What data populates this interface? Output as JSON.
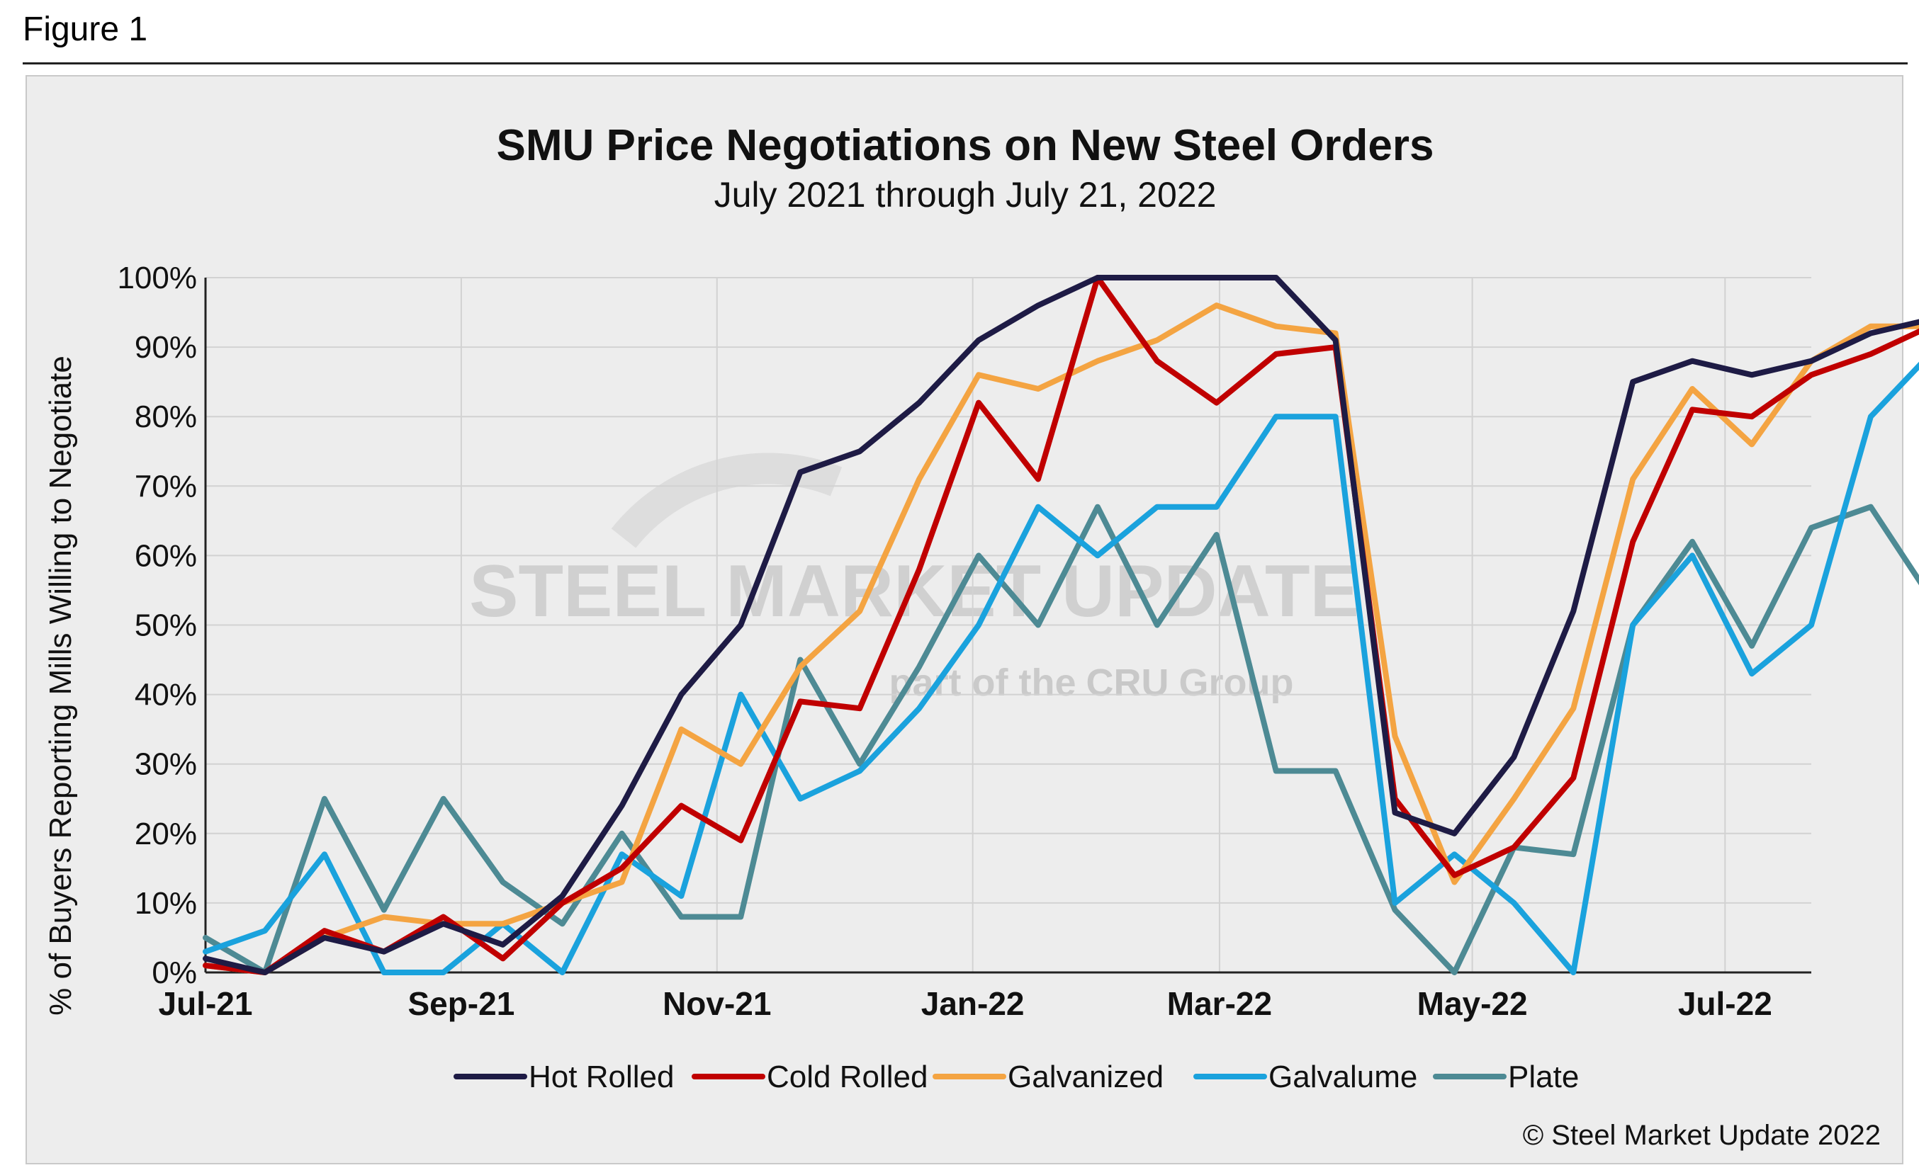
{
  "figure_label": "Figure 1",
  "credit": "© Steel Market Update 2022",
  "watermark": {
    "main": "STEEL MARKET UPDATE",
    "sub_before": "part of the",
    "sub_mark": "CRU",
    "sub_after": "Group"
  },
  "colors": {
    "hot_rolled": "#1e1b45",
    "cold_rolled": "#c00000",
    "galvanized": "#f4a442",
    "galvalume": "#1aa2dd",
    "plate": "#4d8a94"
  },
  "chart_data": {
    "type": "line",
    "title": "SMU Price Negotiations on New Steel Orders",
    "subtitle": "July 2021 through July 21, 2022",
    "xlabel": "",
    "ylabel": "% of Buyers Reporting Mills Willing to Negotiate",
    "ylim": [
      0,
      100
    ],
    "y_ticks": [
      "0%",
      "10%",
      "20%",
      "30%",
      "40%",
      "50%",
      "60%",
      "70%",
      "80%",
      "90%",
      "100%"
    ],
    "y_tick_values": [
      0,
      10,
      20,
      30,
      40,
      50,
      60,
      70,
      80,
      90,
      100
    ],
    "x_ticks": [
      "Jul-21",
      "Sep-21",
      "Nov-21",
      "Jan-22",
      "Mar-22",
      "May-22",
      "Jul-22"
    ],
    "x_tick_index": [
      0,
      4.3,
      8.6,
      12.9,
      17.05,
      21.3,
      25.55
    ],
    "x_index_max": 27,
    "grid": true,
    "legend_position": "bottom",
    "series": [
      {
        "name": "Hot Rolled",
        "key": "hot_rolled",
        "values": [
          2,
          0,
          5,
          3,
          7,
          4,
          11,
          24,
          40,
          50,
          72,
          75,
          82,
          91,
          96,
          100,
          100,
          100,
          100,
          91,
          23,
          20,
          31,
          52,
          85,
          88,
          86,
          88,
          92,
          94
        ]
      },
      {
        "name": "Cold Rolled",
        "key": "cold_rolled",
        "values": [
          1,
          0,
          6,
          3,
          8,
          2,
          10,
          15,
          24,
          19,
          39,
          38,
          58,
          82,
          71,
          100,
          88,
          82,
          89,
          90,
          25,
          14,
          18,
          28,
          62,
          81,
          80,
          86,
          89,
          93
        ]
      },
      {
        "name": "Galvanized",
        "key": "galvanized",
        "values": [
          1,
          0,
          5,
          8,
          7,
          7,
          10,
          13,
          35,
          30,
          44,
          52,
          71,
          86,
          84,
          88,
          91,
          96,
          93,
          92,
          34,
          13,
          25,
          38,
          71,
          84,
          76,
          88,
          93,
          93
        ]
      },
      {
        "name": "Galvalume",
        "key": "galvalume",
        "values": [
          3,
          6,
          17,
          0,
          0,
          7,
          0,
          17,
          11,
          40,
          25,
          29,
          38,
          50,
          67,
          60,
          67,
          67,
          80,
          80,
          10,
          17,
          10,
          0,
          50,
          60,
          43,
          50,
          80,
          89
        ]
      },
      {
        "name": "Plate",
        "key": "plate",
        "values": [
          5,
          0,
          25,
          9,
          25,
          13,
          7,
          20,
          8,
          8,
          45,
          30,
          44,
          60,
          50,
          67,
          50,
          63,
          29,
          29,
          9,
          0,
          18,
          17,
          50,
          62,
          47,
          64,
          67,
          54
        ]
      }
    ]
  }
}
